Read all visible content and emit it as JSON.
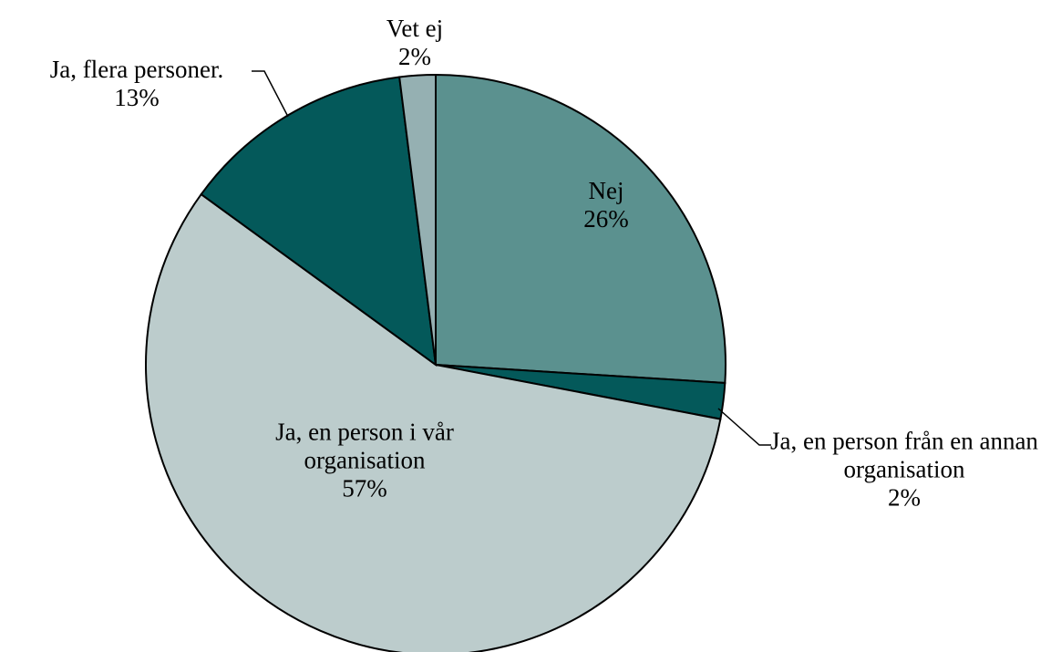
{
  "chart_data": {
    "type": "pie",
    "categories": [
      "Nej",
      "Ja, en person från en annan organisation",
      "Ja, en person i vår organisation",
      "Ja, flera personer.",
      "Vet ej"
    ],
    "values": [
      26,
      2,
      57,
      13,
      2
    ],
    "value_labels": [
      "26%",
      "2%",
      "57%",
      "13%",
      "2%"
    ],
    "colors": [
      "#5b918f",
      "#04595a",
      "#bccccc",
      "#04595a",
      "#95b0b2"
    ]
  }
}
